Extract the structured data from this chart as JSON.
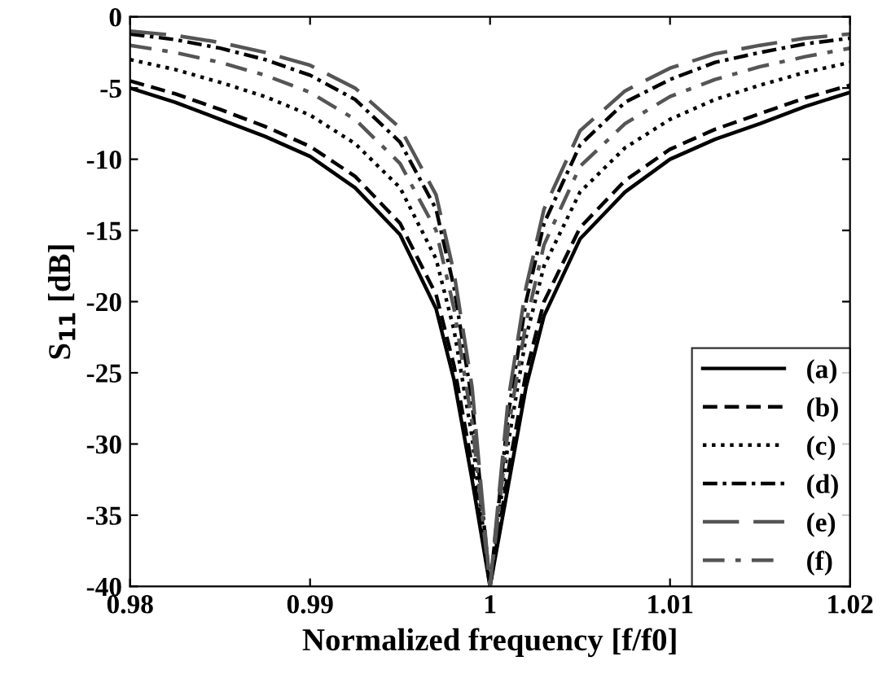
{
  "chart_data": {
    "type": "line",
    "xlabel": "Normalized frequency [f/f0]",
    "ylabel": "S$_{11}$ [dB]",
    "x": [
      0.98,
      0.9825,
      0.985,
      0.9875,
      0.99,
      0.9925,
      0.995,
      0.997,
      0.998,
      0.999,
      1.0,
      1.001,
      1.002,
      1.003,
      1.005,
      1.0075,
      1.01,
      1.0125,
      1.015,
      1.0175,
      1.02
    ],
    "xlim": [
      0.98,
      1.02
    ],
    "xticks": [
      0.98,
      0.99,
      1,
      1.01,
      1.02
    ],
    "ylim": [
      -40,
      0
    ],
    "yticks": [
      -40,
      -35,
      -30,
      -25,
      -20,
      -15,
      -10,
      -5,
      0
    ],
    "grid": false,
    "legend": "bottom right",
    "marker": "none",
    "series": [
      {
        "name": "(a)",
        "color": "#000000",
        "line_style": "solid",
        "values": [
          -5,
          -6,
          -7.2,
          -8.4,
          -9.8,
          -12,
          -15.3,
          -20.5,
          -25.5,
          -32.5,
          -40,
          -33,
          -26,
          -21,
          -15.6,
          -12.3,
          -10,
          -8.6,
          -7.5,
          -6.3,
          -5.3
        ]
      },
      {
        "name": "(b)",
        "color": "#000000",
        "line_style": "dashed",
        "values": [
          -4.5,
          -5.4,
          -6.5,
          -7.7,
          -9.1,
          -11.2,
          -14.5,
          -19.5,
          -24.5,
          -31.5,
          -40,
          -32,
          -25,
          -20,
          -14.8,
          -11.5,
          -9.3,
          -7.9,
          -6.8,
          -5.7,
          -4.8
        ]
      },
      {
        "name": "(c)",
        "color": "#000000",
        "line_style": "dotted",
        "values": [
          -3,
          -3.7,
          -4.6,
          -5.6,
          -6.9,
          -8.9,
          -12,
          -17,
          -22,
          -29.5,
          -40,
          -30,
          -22.5,
          -17.5,
          -12.3,
          -9.2,
          -7.2,
          -5.8,
          -4.8,
          -3.9,
          -3.2
        ]
      },
      {
        "name": "(d)",
        "color": "#000000",
        "line_style": "dashdot",
        "values": [
          -1.2,
          -1.6,
          -2.2,
          -3,
          -4.1,
          -5.8,
          -8.8,
          -13.5,
          -19,
          -27,
          -40,
          -28,
          -20,
          -14.5,
          -9,
          -6,
          -4.4,
          -3.2,
          -2.5,
          -1.9,
          -1.5
        ]
      },
      {
        "name": "(e)",
        "color": "#555555",
        "line_style": "longdash",
        "values": [
          -1,
          -1.3,
          -1.8,
          -2.5,
          -3.4,
          -5,
          -7.8,
          -12.5,
          -18,
          -26,
          -40,
          -27,
          -19,
          -13.5,
          -8,
          -5.2,
          -3.6,
          -2.6,
          -2,
          -1.5,
          -1.2
        ]
      },
      {
        "name": "(f)",
        "color": "#555555",
        "line_style": "sparsedash",
        "values": [
          -2,
          -2.5,
          -3.2,
          -4.1,
          -5.3,
          -7.2,
          -10.3,
          -15,
          -20.5,
          -28.5,
          -40,
          -29,
          -21.5,
          -16,
          -10.5,
          -7.5,
          -5.6,
          -4.4,
          -3.5,
          -2.8,
          -2.2
        ]
      }
    ]
  }
}
